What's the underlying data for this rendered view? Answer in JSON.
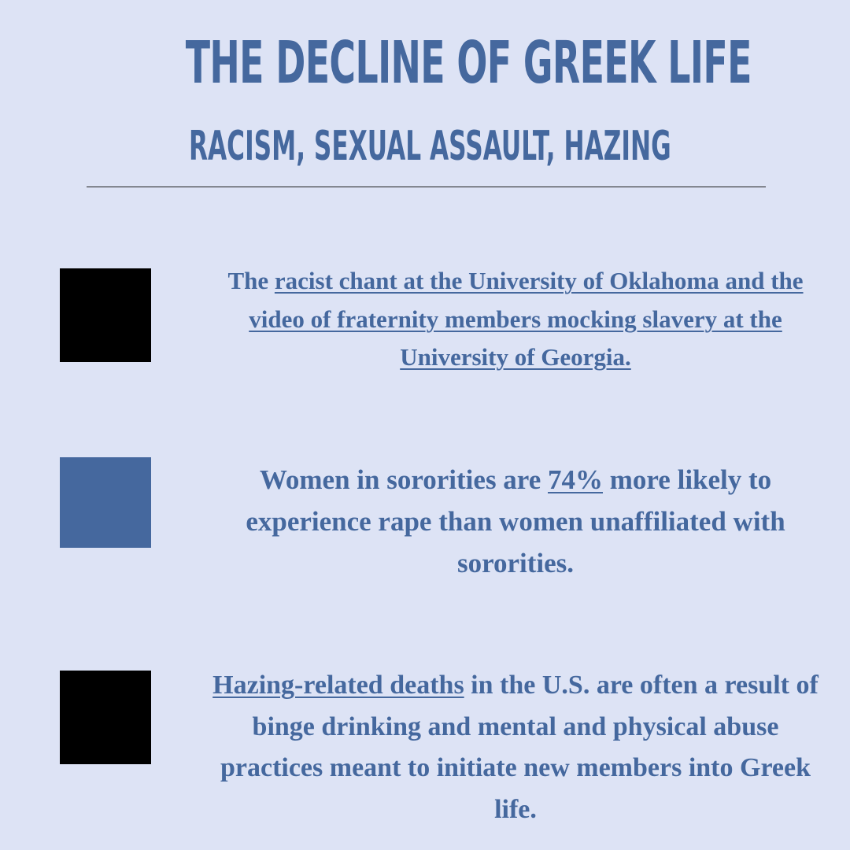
{
  "header": {
    "title": "THE DECLINE OF GREEK LIFE",
    "subtitle": "RACISM, SEXUAL ASSAULT, HAZING"
  },
  "items": [
    {
      "marker_color": "#000000",
      "before": "The ",
      "link": "racist chant at the University of Oklahoma and the video of fraternity members mocking slavery at the University of Georgia.",
      "after": ""
    },
    {
      "marker_color": "#45689e",
      "before": "Women in sororities are ",
      "link": "74%",
      "after": " more likely to experience rape than women unaffiliated with sororities."
    },
    {
      "marker_color": "#000000",
      "before": "",
      "link": "Hazing-related deaths",
      "after": " in the U.S. are often a result of binge drinking and mental and physical abuse practices meant to initiate new members into Greek life."
    }
  ]
}
